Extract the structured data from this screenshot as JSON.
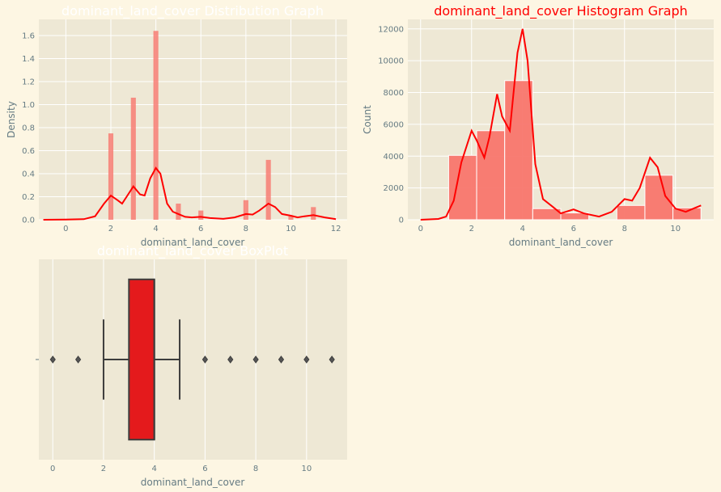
{
  "figure": {
    "background": "#fdf6e3",
    "panel_background": "#eee8d5",
    "grid_color": "#ffffff",
    "tick_color": "#657b83"
  },
  "chart_data": [
    {
      "type": "bar",
      "title": "dominant_land_cover Distribution Graph",
      "title_color": "#ffffff",
      "xlabel": "dominant_land_cover",
      "ylabel": "Density",
      "xlim": [
        -1.2,
        12.5
      ],
      "ylim": [
        0,
        1.74
      ],
      "xticks": [
        0,
        2,
        4,
        6,
        8,
        10,
        12
      ],
      "yticks": [
        0.0,
        0.2,
        0.4,
        0.6,
        0.8,
        1.0,
        1.2,
        1.4,
        1.6
      ],
      "bar_color": "#f8766d",
      "kde_color": "#ff0000",
      "bar_width": 0.22,
      "bars": [
        {
          "x": 2,
          "value": 0.75
        },
        {
          "x": 3,
          "value": 1.06
        },
        {
          "x": 4,
          "value": 1.64
        },
        {
          "x": 5,
          "value": 0.14
        },
        {
          "x": 6,
          "value": 0.08
        },
        {
          "x": 8,
          "value": 0.17
        },
        {
          "x": 9,
          "value": 0.52
        },
        {
          "x": 10,
          "value": 0.03
        },
        {
          "x": 11,
          "value": 0.11
        }
      ],
      "kde": [
        [
          -1,
          0
        ],
        [
          0,
          0.002
        ],
        [
          0.8,
          0.005
        ],
        [
          1.3,
          0.03
        ],
        [
          1.7,
          0.14
        ],
        [
          2,
          0.21
        ],
        [
          2.3,
          0.17
        ],
        [
          2.5,
          0.14
        ],
        [
          2.7,
          0.2
        ],
        [
          3,
          0.29
        ],
        [
          3.3,
          0.22
        ],
        [
          3.5,
          0.21
        ],
        [
          3.75,
          0.36
        ],
        [
          4,
          0.45
        ],
        [
          4.2,
          0.4
        ],
        [
          4.5,
          0.14
        ],
        [
          4.75,
          0.07
        ],
        [
          5,
          0.05
        ],
        [
          5.3,
          0.025
        ],
        [
          5.6,
          0.02
        ],
        [
          6,
          0.025
        ],
        [
          6.4,
          0.015
        ],
        [
          7,
          0.008
        ],
        [
          7.5,
          0.02
        ],
        [
          8,
          0.05
        ],
        [
          8.3,
          0.045
        ],
        [
          8.6,
          0.08
        ],
        [
          9,
          0.14
        ],
        [
          9.3,
          0.11
        ],
        [
          9.6,
          0.05
        ],
        [
          10,
          0.035
        ],
        [
          10.3,
          0.02
        ],
        [
          10.6,
          0.03
        ],
        [
          11,
          0.04
        ],
        [
          11.5,
          0.02
        ],
        [
          12,
          0.005
        ]
      ]
    },
    {
      "type": "bar",
      "title": "dominant_land_cover Histogram Graph",
      "title_color": "#ff0000",
      "xlabel": "dominant_land_cover",
      "ylabel": "Count",
      "xlim": [
        -0.5,
        11.5
      ],
      "ylim": [
        0,
        12600
      ],
      "xticks": [
        0,
        2,
        4,
        6,
        8,
        10
      ],
      "yticks": [
        0,
        2000,
        4000,
        6000,
        8000,
        10000,
        12000
      ],
      "bar_color": "#f8766d",
      "bar_edge": "#ffffff",
      "kde_color": "#ff0000",
      "bins": [
        {
          "x0": 1.1,
          "x1": 2.2,
          "value": 4050
        },
        {
          "x0": 2.2,
          "x1": 3.3,
          "value": 5600
        },
        {
          "x0": 3.3,
          "x1": 4.4,
          "value": 8750
        },
        {
          "x0": 4.4,
          "x1": 5.5,
          "value": 700
        },
        {
          "x0": 5.5,
          "x1": 6.6,
          "value": 430
        },
        {
          "x0": 6.6,
          "x1": 7.7,
          "value": 0
        },
        {
          "x0": 7.7,
          "x1": 8.8,
          "value": 900
        },
        {
          "x0": 8.8,
          "x1": 9.9,
          "value": 2800
        },
        {
          "x0": 9.9,
          "x1": 11.0,
          "value": 750
        }
      ],
      "kde": [
        [
          0,
          0
        ],
        [
          0.7,
          50
        ],
        [
          1,
          200
        ],
        [
          1.3,
          1200
        ],
        [
          1.6,
          3600
        ],
        [
          2,
          5600
        ],
        [
          2.2,
          5000
        ],
        [
          2.5,
          3900
        ],
        [
          2.7,
          5200
        ],
        [
          3,
          7900
        ],
        [
          3.2,
          6500
        ],
        [
          3.5,
          5600
        ],
        [
          3.8,
          10500
        ],
        [
          4,
          12000
        ],
        [
          4.2,
          10000
        ],
        [
          4.5,
          3500
        ],
        [
          4.8,
          1300
        ],
        [
          5.2,
          800
        ],
        [
          5.5,
          400
        ],
        [
          6,
          650
        ],
        [
          6.4,
          400
        ],
        [
          7,
          200
        ],
        [
          7.5,
          500
        ],
        [
          8,
          1300
        ],
        [
          8.3,
          1200
        ],
        [
          8.6,
          2000
        ],
        [
          9,
          3900
        ],
        [
          9.3,
          3300
        ],
        [
          9.6,
          1500
        ],
        [
          10,
          700
        ],
        [
          10.4,
          500
        ],
        [
          10.7,
          700
        ],
        [
          11,
          900
        ]
      ]
    },
    {
      "type": "box",
      "title": "dominant_land_cover BoxPlot",
      "title_color": "#ffffff",
      "xlabel": "dominant_land_cover",
      "xlim": [
        -0.55,
        11.6
      ],
      "xticks": [
        0,
        2,
        4,
        6,
        8,
        10
      ],
      "box_color": "#e41a1c",
      "line_color": "#3d3d3d",
      "min": 2,
      "q1": 3,
      "median": 4,
      "q3": 4,
      "max": 5,
      "outliers": [
        0,
        1,
        6,
        7,
        8,
        9,
        10,
        11
      ]
    }
  ]
}
